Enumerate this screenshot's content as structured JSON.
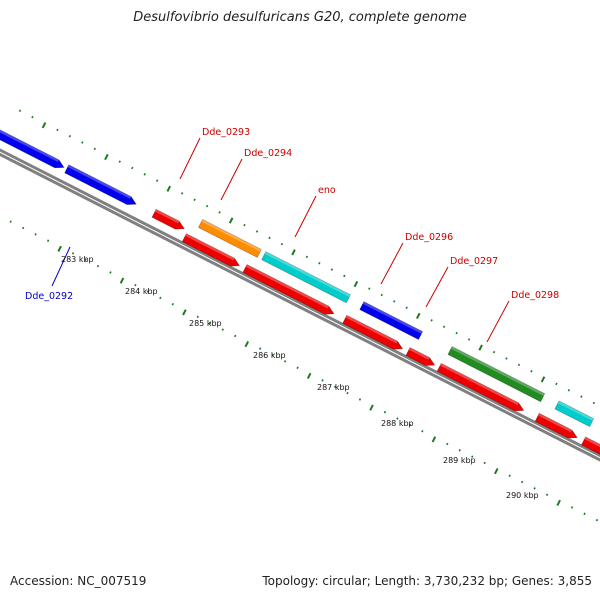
{
  "title": "Desulfovibrio desulfuricans G20, complete genome",
  "footer": {
    "accession": "Accession: NC_007519",
    "summary": "Topology: circular; Length: 3,730,232 bp; Genes: 3,855"
  },
  "colors": {
    "backbone": "#808080",
    "tick": "#1f7a1f",
    "label_default": "#cc0000",
    "label_blue": "#0000cc"
  },
  "tick_labels": [
    "283 kbp",
    "284 kbp",
    "285 kbp",
    "286 kbp",
    "287 kbp",
    "288 kbp",
    "289 kbp",
    "290 kbp"
  ],
  "gene_labels": [
    {
      "text": "Dde_0292",
      "color": "#0000cc"
    },
    {
      "text": "Dde_0293",
      "color": "#cc0000"
    },
    {
      "text": "Dde_0294",
      "color": "#cc0000"
    },
    {
      "text": "eno",
      "color": "#cc0000"
    },
    {
      "text": "Dde_0296",
      "color": "#cc0000"
    },
    {
      "text": "Dde_0297",
      "color": "#cc0000"
    },
    {
      "text": "Dde_0298",
      "color": "#cc0000"
    }
  ],
  "features": [
    {
      "name": "Dde_0292",
      "color": "#0000ee"
    },
    {
      "name": "Dde_0293",
      "color": "#ff8c00"
    },
    {
      "name": "eno",
      "color": "#00cccc"
    },
    {
      "name": "Dde_0296",
      "color": "#0000ee"
    },
    {
      "name": "Dde_0298",
      "color": "#228b22"
    },
    {
      "name": "cds",
      "color": "#ee0000"
    }
  ]
}
